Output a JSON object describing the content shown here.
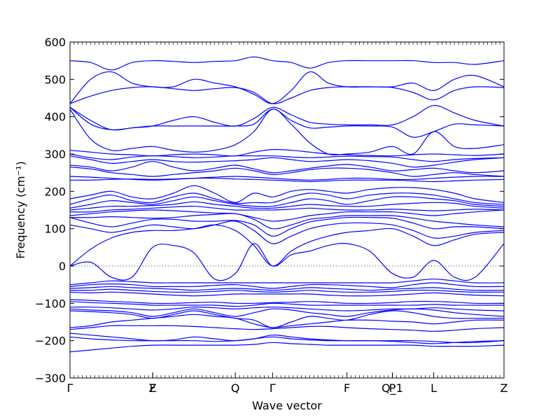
{
  "chart_data": {
    "type": "line",
    "xlabel": "Wave vector",
    "ylabel": "Frequency (cm⁻¹)",
    "ylim": [
      -300,
      600
    ],
    "yticks": [
      -300,
      -200,
      -100,
      0,
      100,
      200,
      300,
      400,
      500,
      600
    ],
    "xlim": [
      0,
      10.5
    ],
    "high_symmetry_points": [
      {
        "label": "Γ",
        "x": 0
      },
      {
        "label": "Z",
        "x": 2.0
      },
      {
        "label": "F",
        "x": 2.0
      },
      {
        "label": "Q",
        "x": 4.0
      },
      {
        "label": "Γ",
        "x": 4.9
      },
      {
        "label": "F",
        "x": 6.7
      },
      {
        "label": "P",
        "x": 7.8
      },
      {
        "label": "Q_1",
        "x": 7.8
      },
      {
        "label": "L",
        "x": 8.8
      },
      {
        "label": "Z",
        "x": 10.5
      }
    ],
    "zero_line": {
      "y": 0,
      "style": "dotted"
    },
    "series_color": "#0000ff",
    "x": [
      0,
      0.5,
      1.0,
      1.5,
      2.0,
      2.5,
      3.0,
      3.5,
      4.0,
      4.45,
      4.9,
      5.35,
      5.8,
      6.25,
      6.7,
      7.25,
      7.8,
      8.3,
      8.8,
      9.3,
      9.8,
      10.5
    ],
    "series": [
      {
        "values": [
          550,
          545,
          525,
          545,
          550,
          548,
          545,
          548,
          550,
          560,
          550,
          545,
          530,
          545,
          550,
          550,
          550,
          550,
          545,
          545,
          540,
          550
        ]
      },
      {
        "values": [
          435,
          500,
          520,
          490,
          480,
          480,
          500,
          490,
          480,
          460,
          435,
          470,
          520,
          490,
          480,
          480,
          480,
          490,
          470,
          500,
          510,
          480
        ]
      },
      {
        "values": [
          435,
          455,
          470,
          478,
          480,
          475,
          470,
          475,
          478,
          465,
          435,
          450,
          470,
          478,
          480,
          480,
          478,
          465,
          445,
          470,
          480,
          478
        ]
      },
      {
        "values": [
          425,
          390,
          365,
          370,
          375,
          390,
          400,
          385,
          375,
          395,
          425,
          405,
          385,
          380,
          378,
          378,
          378,
          400,
          430,
          410,
          390,
          375
        ]
      },
      {
        "values": [
          425,
          380,
          365,
          370,
          375,
          375,
          375,
          375,
          375,
          380,
          420,
          390,
          370,
          372,
          375,
          375,
          372,
          345,
          360,
          380,
          378,
          375
        ]
      },
      {
        "values": [
          420,
          340,
          310,
          315,
          320,
          310,
          305,
          310,
          325,
          360,
          420,
          380,
          330,
          300,
          300,
          305,
          320,
          300,
          360,
          320,
          315,
          325
        ]
      },
      {
        "values": [
          310,
          305,
          300,
          298,
          295,
          298,
          300,
          298,
          295,
          305,
          312,
          310,
          305,
          300,
          298,
          296,
          295,
          298,
          300,
          298,
          296,
          300
        ]
      },
      {
        "values": [
          300,
          290,
          285,
          292,
          295,
          293,
          290,
          292,
          295,
          295,
          295,
          292,
          290,
          292,
          294,
          293,
          292,
          285,
          280,
          285,
          288,
          290
        ]
      },
      {
        "values": [
          295,
          285,
          275,
          280,
          285,
          280,
          278,
          280,
          282,
          285,
          290,
          285,
          280,
          282,
          285,
          282,
          275,
          265,
          270,
          278,
          285,
          290
        ]
      },
      {
        "values": [
          270,
          265,
          255,
          265,
          280,
          265,
          255,
          262,
          270,
          260,
          250,
          255,
          262,
          268,
          272,
          265,
          255,
          258,
          262,
          255,
          250,
          255
        ]
      },
      {
        "values": [
          265,
          260,
          250,
          245,
          240,
          245,
          250,
          255,
          262,
          255,
          245,
          250,
          258,
          262,
          262,
          258,
          250,
          240,
          245,
          250,
          245,
          240
        ]
      },
      {
        "values": [
          240,
          238,
          235,
          232,
          230,
          232,
          235,
          238,
          240,
          238,
          235,
          232,
          230,
          232,
          235,
          235,
          232,
          232,
          235,
          238,
          240,
          240
        ]
      },
      {
        "values": [
          230,
          230,
          232,
          233,
          232,
          233,
          235,
          235,
          233,
          232,
          230,
          228,
          226,
          228,
          230,
          230,
          230,
          228,
          226,
          228,
          230,
          232
        ]
      },
      {
        "values": [
          180,
          190,
          200,
          185,
          180,
          195,
          215,
          195,
          170,
          195,
          185,
          200,
          205,
          200,
          195,
          205,
          210,
          210,
          205,
          195,
          180,
          170
        ]
      },
      {
        "values": [
          165,
          180,
          190,
          175,
          170,
          185,
          195,
          180,
          168,
          170,
          170,
          185,
          195,
          190,
          180,
          190,
          195,
          195,
          190,
          180,
          170,
          165
        ]
      },
      {
        "values": [
          155,
          165,
          175,
          170,
          165,
          175,
          185,
          175,
          165,
          160,
          160,
          170,
          180,
          175,
          165,
          175,
          185,
          185,
          180,
          175,
          165,
          160
        ]
      },
      {
        "values": [
          150,
          155,
          160,
          160,
          162,
          165,
          172,
          165,
          160,
          155,
          155,
          160,
          165,
          162,
          160,
          160,
          165,
          168,
          170,
          168,
          160,
          155
        ]
      },
      {
        "values": [
          145,
          145,
          150,
          152,
          155,
          158,
          160,
          155,
          150,
          150,
          150,
          152,
          155,
          152,
          150,
          150,
          152,
          150,
          148,
          150,
          152,
          150
        ]
      },
      {
        "values": [
          135,
          140,
          145,
          148,
          150,
          148,
          145,
          142,
          140,
          130,
          120,
          125,
          135,
          140,
          145,
          145,
          145,
          140,
          135,
          140,
          145,
          150
        ]
      },
      {
        "values": [
          130,
          130,
          132,
          130,
          128,
          130,
          135,
          138,
          140,
          125,
          100,
          110,
          125,
          130,
          135,
          135,
          135,
          128,
          120,
          115,
          110,
          105
        ]
      },
      {
        "values": [
          130,
          115,
          105,
          115,
          125,
          125,
          120,
          120,
          122,
          110,
          80,
          100,
          118,
          125,
          130,
          130,
          128,
          115,
          100,
          105,
          105,
          100
        ]
      },
      {
        "values": [
          110,
          100,
          90,
          100,
          110,
          105,
          100,
          110,
          120,
          95,
          60,
          80,
          100,
          110,
          115,
          115,
          110,
          95,
          75,
          80,
          90,
          95
        ]
      },
      {
        "values": [
          0,
          45,
          75,
          90,
          95,
          95,
          100,
          110,
          95,
          55,
          0,
          40,
          65,
          80,
          90,
          95,
          100,
          80,
          55,
          70,
          85,
          90
        ]
      },
      {
        "values": [
          0,
          10,
          -30,
          -30,
          50,
          55,
          35,
          -35,
          -20,
          60,
          0,
          30,
          40,
          55,
          60,
          40,
          -20,
          -30,
          15,
          -30,
          -30,
          60
        ]
      },
      {
        "values": [
          -50,
          -45,
          -40,
          -42,
          -45,
          -45,
          -45,
          -45,
          -45,
          -45,
          -45,
          -45,
          -45,
          -45,
          -45,
          -45,
          -45,
          -40,
          -35,
          -40,
          -45,
          -45
        ]
      },
      {
        "values": [
          -55,
          -50,
          -48,
          -50,
          -55,
          -55,
          -55,
          -52,
          -50,
          -55,
          -60,
          -55,
          -50,
          -50,
          -52,
          -55,
          -58,
          -50,
          -45,
          -50,
          -55,
          -55
        ]
      },
      {
        "values": [
          -60,
          -58,
          -55,
          -58,
          -60,
          -62,
          -65,
          -62,
          -60,
          -62,
          -65,
          -62,
          -58,
          -60,
          -62,
          -65,
          -62,
          -60,
          -58,
          -62,
          -65,
          -65
        ]
      },
      {
        "values": [
          -65,
          -65,
          -62,
          -65,
          -68,
          -70,
          -70,
          -68,
          -65,
          -68,
          -70,
          -68,
          -65,
          -68,
          -70,
          -70,
          -68,
          -65,
          -65,
          -68,
          -70,
          -70
        ]
      },
      {
        "values": [
          -70,
          -72,
          -70,
          -72,
          -75,
          -78,
          -80,
          -78,
          -75,
          -75,
          -75,
          -75,
          -75,
          -78,
          -80,
          -80,
          -78,
          -75,
          -72,
          -75,
          -78,
          -80
        ]
      },
      {
        "values": [
          -90,
          -92,
          -95,
          -97,
          -100,
          -100,
          -98,
          -97,
          -100,
          -100,
          -98,
          -97,
          -95,
          -97,
          -100,
          -100,
          -98,
          -95,
          -95,
          -97,
          -100,
          -100
        ]
      },
      {
        "values": [
          -95,
          -98,
          -100,
          -102,
          -105,
          -105,
          -105,
          -105,
          -108,
          -105,
          -100,
          -102,
          -105,
          -105,
          -105,
          -105,
          -105,
          -105,
          -103,
          -105,
          -105,
          -105
        ]
      },
      {
        "values": [
          -110,
          -110,
          -112,
          -115,
          -118,
          -115,
          -110,
          -112,
          -115,
          -112,
          -110,
          -112,
          -115,
          -118,
          -120,
          -118,
          -115,
          -115,
          -112,
          -115,
          -118,
          -120
        ]
      },
      {
        "values": [
          -115,
          -118,
          -120,
          -125,
          -135,
          -125,
          -115,
          -125,
          -135,
          -125,
          -115,
          -118,
          -125,
          -130,
          -135,
          -125,
          -118,
          -115,
          -118,
          -125,
          -130,
          -135
        ]
      },
      {
        "values": [
          -120,
          -122,
          -125,
          -130,
          -140,
          -130,
          -120,
          -130,
          -140,
          -145,
          -165,
          -150,
          -135,
          -140,
          -145,
          -130,
          -120,
          -125,
          -135,
          -140,
          -140,
          -140
        ]
      },
      {
        "values": [
          -165,
          -160,
          -150,
          -145,
          -140,
          -135,
          -130,
          -135,
          -140,
          -155,
          -165,
          -160,
          -155,
          -150,
          -145,
          -145,
          -148,
          -150,
          -155,
          -150,
          -145,
          -145
        ]
      },
      {
        "values": [
          -170,
          -165,
          -160,
          -160,
          -160,
          -160,
          -162,
          -165,
          -168,
          -170,
          -168,
          -165,
          -162,
          -162,
          -165,
          -168,
          -170,
          -172,
          -175,
          -172,
          -168,
          -165
        ]
      },
      {
        "values": [
          -180,
          -185,
          -190,
          -195,
          -200,
          -198,
          -190,
          -195,
          -200,
          -195,
          -185,
          -190,
          -195,
          -198,
          -200,
          -200,
          -200,
          -200,
          -202,
          -205,
          -205,
          -200
        ]
      },
      {
        "values": [
          -190,
          -195,
          -198,
          -200,
          -200,
          -200,
          -200,
          -202,
          -200,
          -195,
          -190,
          -195,
          -198,
          -200,
          -200,
          -200,
          -202,
          -205,
          -208,
          -205,
          -202,
          -200
        ]
      },
      {
        "values": [
          -230,
          -225,
          -220,
          -215,
          -212,
          -212,
          -212,
          -212,
          -212,
          -210,
          -205,
          -208,
          -210,
          -212,
          -212,
          -212,
          -212,
          -212,
          -215,
          -215,
          -215,
          -212
        ]
      }
    ]
  }
}
